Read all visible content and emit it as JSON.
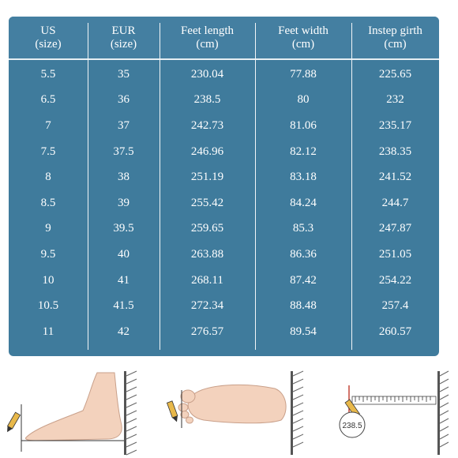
{
  "headers": [
    {
      "line1": "US",
      "line2": "(size)"
    },
    {
      "line1": "EUR",
      "line2": "(size)"
    },
    {
      "line1": "Feet length",
      "line2": "(cm)"
    },
    {
      "line1": "Feet width",
      "line2": "(cm)"
    },
    {
      "line1": "Instep girth",
      "line2": "(cm)"
    }
  ],
  "rows": [
    [
      "5.5",
      "35",
      "230.04",
      "77.88",
      "225.65"
    ],
    [
      "6.5",
      "36",
      "238.5",
      "80",
      "232"
    ],
    [
      "7",
      "37",
      "242.73",
      "81.06",
      "235.17"
    ],
    [
      "7.5",
      "37.5",
      "246.96",
      "82.12",
      "238.35"
    ],
    [
      "8",
      "38",
      "251.19",
      "83.18",
      "241.52"
    ],
    [
      "8.5",
      "39",
      "255.42",
      "84.24",
      "244.7"
    ],
    [
      "9",
      "39.5",
      "259.65",
      "85.3",
      "247.87"
    ],
    [
      "9.5",
      "40",
      "263.88",
      "86.36",
      "251.05"
    ],
    [
      "10",
      "41",
      "268.11",
      "87.42",
      "254.22"
    ],
    [
      "10.5",
      "41.5",
      "272.34",
      "88.48",
      "257.4"
    ],
    [
      "11",
      "42",
      "276.57",
      "89.54",
      "260.57"
    ]
  ],
  "illustrations": {
    "girth_reading": "238.5"
  },
  "colors": {
    "table_bg": "#3f7b9c",
    "text": "#ffffff",
    "skin": "#f3d2bd"
  }
}
